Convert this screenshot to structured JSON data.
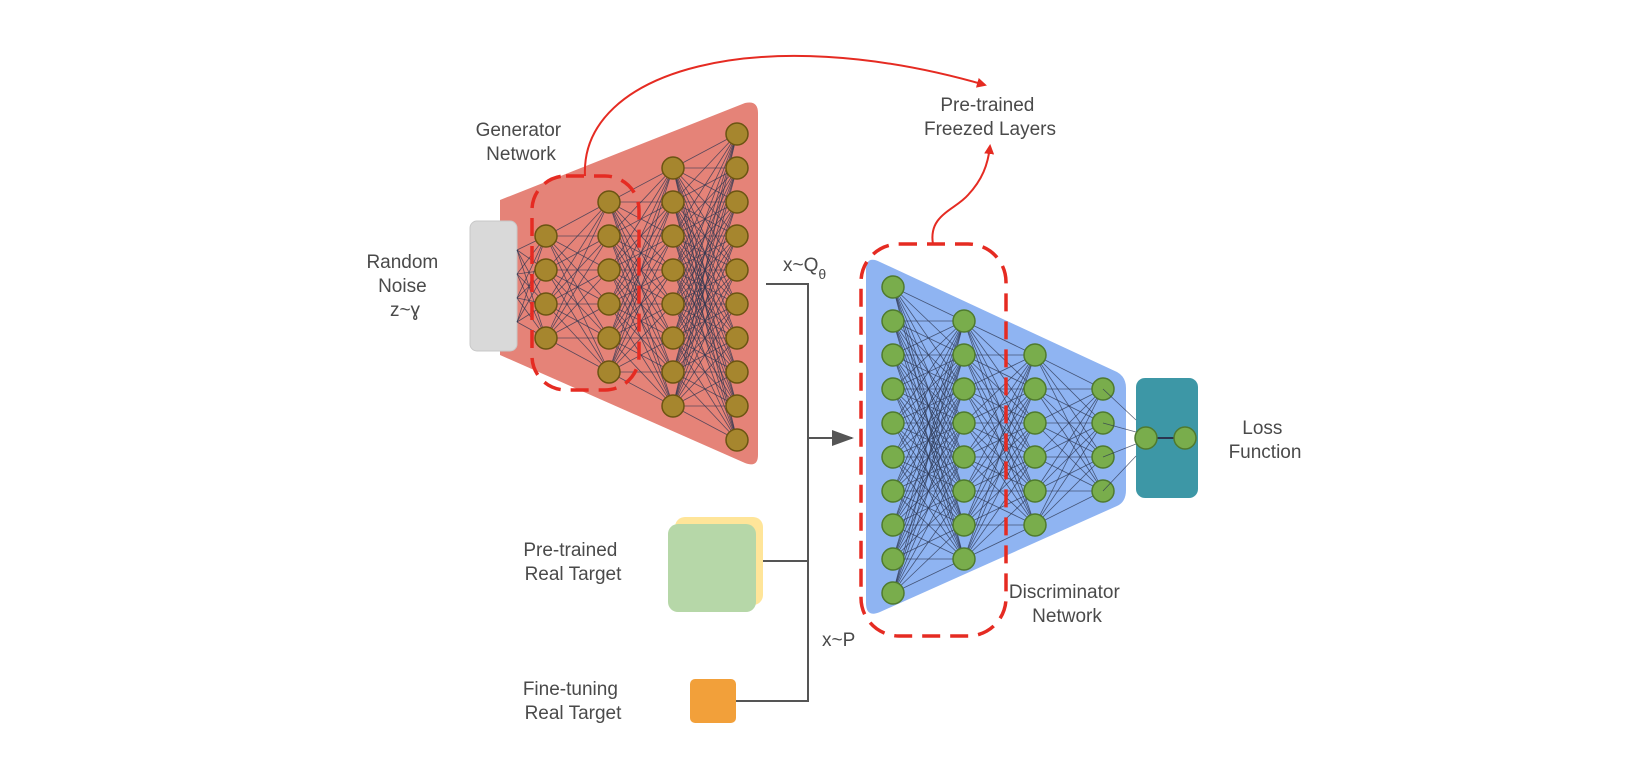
{
  "labels": {
    "generator": [
      "Generator",
      "Network"
    ],
    "random_noise": [
      "Random",
      "Noise",
      "z~ɣ"
    ],
    "pretrained_frozen": [
      "Pre-trained",
      "Freezed Layers"
    ],
    "x_q": "x~Q",
    "x_q_sub": "θ",
    "pretrained_target": [
      "Pre-trained",
      "Real Target"
    ],
    "finetuning_target": [
      "Fine-tuning",
      "Real Target"
    ],
    "x_p": "x~P",
    "discriminator": [
      "Discriminator",
      "Network"
    ],
    "loss": [
      "Loss",
      "Function"
    ]
  },
  "colors": {
    "generator_fill": "#e58378",
    "discriminator_fill": "#8fb4f2",
    "noise_box": "#d9d9d9",
    "pretrained_green": "#b6d7a8",
    "pretrained_yellow": "#ffe599",
    "finetune_orange": "#f2a03a",
    "loss_teal": "#3d97a6",
    "frozen_highlight": "#e52b22"
  }
}
